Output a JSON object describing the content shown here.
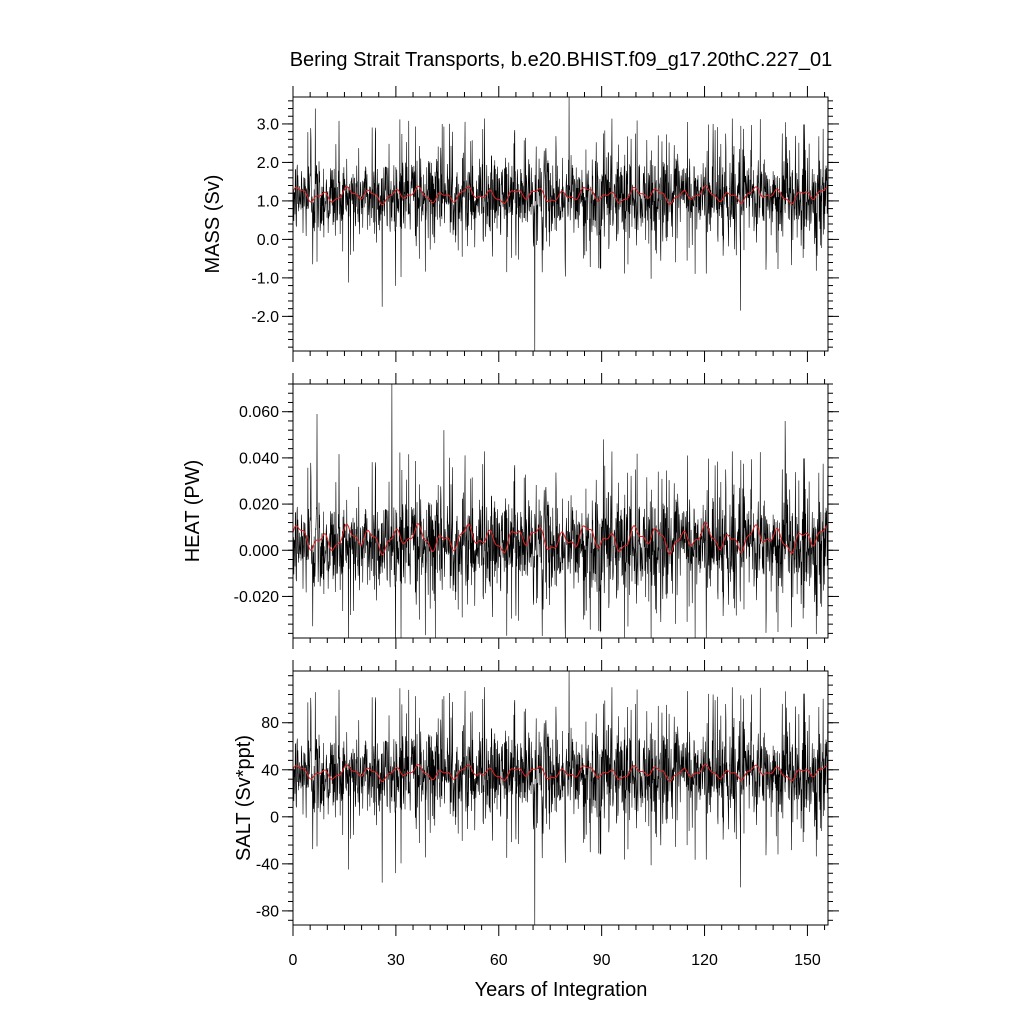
{
  "colors": {
    "raw": "#000000",
    "smoothed": "#e02020"
  },
  "chart_data": {
    "type": "line",
    "title": "Bering Strait Transports, b.e20.BHIST.f09_g17.20thC.227_01",
    "xlabel": "Years of Integration",
    "x_range": [
      0,
      156
    ],
    "x_ticks": [
      0,
      30,
      60,
      90,
      120,
      150
    ],
    "panels": [
      {
        "key": "mass",
        "ylabel": "MASS (Sv)",
        "ylim": [
          -2.9,
          3.7
        ],
        "y_ticks": [
          3.0,
          2.0,
          1.0,
          0.0,
          -1.0,
          -2.0
        ],
        "y_tick_labels": [
          "3.0",
          "2.0",
          "1.0",
          "0.0",
          "-1.0",
          "-2.0"
        ],
        "y_minor_step": 0.2,
        "series_mean": 1.1,
        "series_spread": 0.55,
        "smoothed_range": [
          0.9,
          1.4
        ],
        "extremes": [
          {
            "x": 6.5,
            "y": 3.4
          },
          {
            "x": 70.5,
            "y": -2.9
          },
          {
            "x": 80.5,
            "y": 3.7
          },
          {
            "x": 43.5,
            "y": 3.0
          },
          {
            "x": 122.5,
            "y": 3.0
          },
          {
            "x": 130.5,
            "y": -1.85
          },
          {
            "x": 26.0,
            "y": -1.75
          }
        ]
      },
      {
        "key": "heat",
        "ylabel": "HEAT (PW)",
        "ylim": [
          -0.038,
          0.072
        ],
        "y_ticks": [
          0.06,
          0.04,
          0.02,
          0.0,
          -0.02
        ],
        "y_tick_labels": [
          "0.060",
          "0.040",
          "0.020",
          "0.000",
          "-0.020"
        ],
        "y_minor_step": 0.004,
        "series_mean": 0.002,
        "series_spread": 0.011,
        "smoothed_range": [
          -0.002,
          0.012
        ],
        "extremes": [
          {
            "x": 28.8,
            "y": 0.072
          },
          {
            "x": 41.5,
            "y": -0.038
          },
          {
            "x": 7.0,
            "y": 0.059
          },
          {
            "x": 44.0,
            "y": 0.052
          },
          {
            "x": 90.5,
            "y": 0.048
          },
          {
            "x": 143.5,
            "y": 0.056
          },
          {
            "x": 128.5,
            "y": -0.021
          }
        ]
      },
      {
        "key": "salt",
        "ylabel": "SALT (Sv*ppt)",
        "ylim": [
          -92,
          124
        ],
        "y_ticks": [
          80,
          40,
          0,
          -40,
          -80
        ],
        "y_tick_labels": [
          "80",
          "40",
          "0",
          "-40",
          "-80"
        ],
        "y_minor_step": 8,
        "series_mean": 36,
        "series_spread": 20,
        "smoothed_range": [
          30,
          45
        ],
        "extremes": [
          {
            "x": 6.5,
            "y": 106
          },
          {
            "x": 70.5,
            "y": -92
          },
          {
            "x": 80.5,
            "y": 124
          },
          {
            "x": 43.5,
            "y": 100
          },
          {
            "x": 122.5,
            "y": 104
          },
          {
            "x": 130.5,
            "y": -60
          },
          {
            "x": 26.0,
            "y": -56
          }
        ]
      }
    ]
  }
}
